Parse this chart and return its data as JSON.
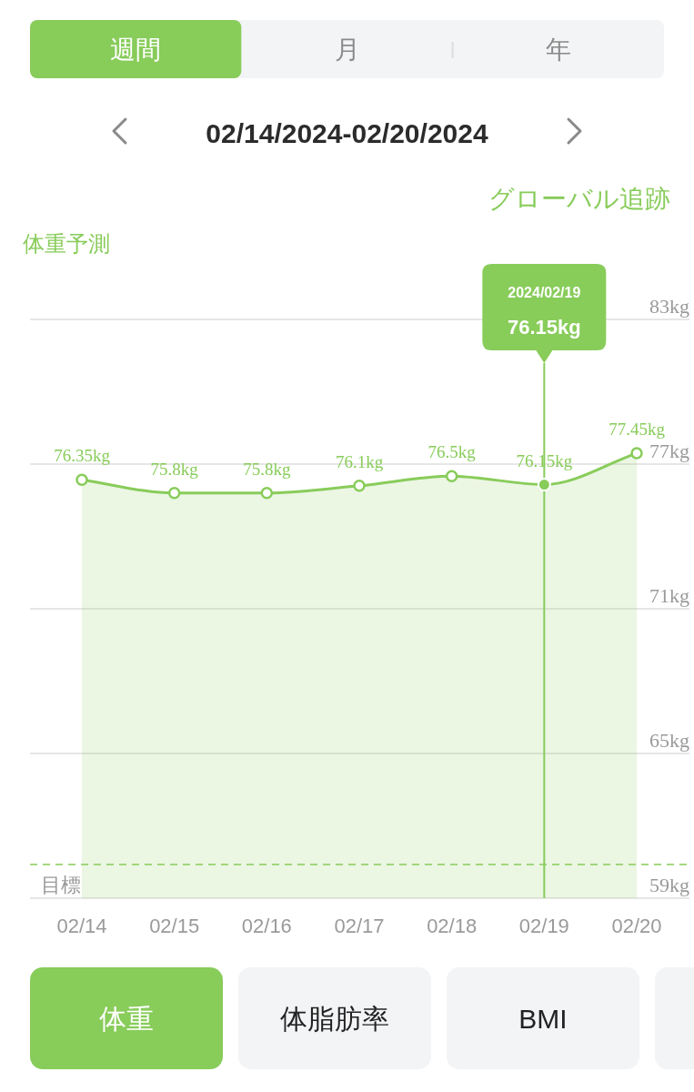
{
  "chart_data": {
    "type": "area",
    "title": "02/14/2024-02/20/2024",
    "subtitle": "体重予測",
    "categories": [
      "02/14",
      "02/15",
      "02/16",
      "02/17",
      "02/18",
      "02/19",
      "02/20"
    ],
    "series": [
      {
        "color": "#88cc5a",
        "values": [
          76.35,
          75.8,
          75.8,
          76.1,
          76.5,
          76.15,
          77.45
        ],
        "value_labels": [
          "76.35kg",
          "75.8kg",
          "75.8kg",
          "76.1kg",
          "76.5kg",
          "76.15kg",
          "77.45kg"
        ]
      }
    ],
    "ylim": [
      59,
      83
    ],
    "yticks": [
      {
        "value": 59,
        "label": "59kg"
      },
      {
        "value": 65,
        "label": "65kg"
      },
      {
        "value": 71,
        "label": "71kg"
      },
      {
        "value": 77,
        "label": "77kg"
      },
      {
        "value": 83,
        "label": "83kg"
      }
    ],
    "grid": "y",
    "marker": "circle",
    "ref_lines": [
      {
        "axis": "y",
        "value": 60.4,
        "label": "目標",
        "line_style": "dashed",
        "color": "#88cc5a"
      },
      {
        "axis": "x",
        "value": "02/19",
        "color": "#88cc5a"
      }
    ],
    "annotations": [
      "週間",
      "月",
      "年",
      "グローバル追跡",
      "体重",
      "体脂肪率",
      "BMI",
      "2024/02/19",
      "76.15kg"
    ]
  }
}
